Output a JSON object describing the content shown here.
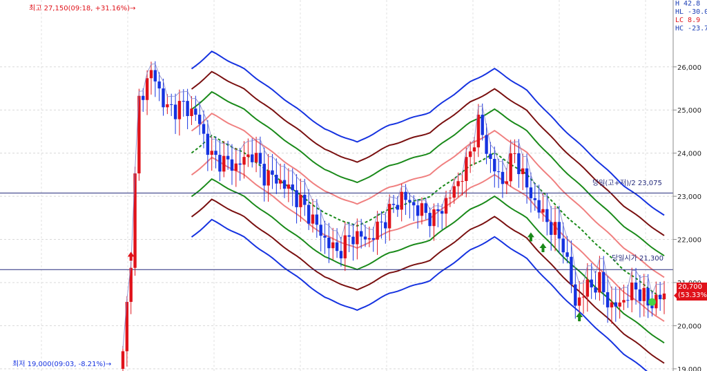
{
  "chart_data": {
    "type": "candlestick",
    "title": "",
    "ylim": [
      18950,
      27550
    ],
    "ytick_labels": [
      "19,000",
      "20,000",
      "21,000",
      "22,000",
      "23,000",
      "24,000",
      "25,000",
      "26,000"
    ],
    "ytick_values": [
      19000,
      20000,
      21000,
      22000,
      23000,
      24000,
      25000,
      26000
    ],
    "horizontal_lines": [
      {
        "label": "당일(고+저)/2 23,075",
        "value": 23075
      },
      {
        "label": "당일시가 21,300",
        "value": 21300
      }
    ],
    "annotations": {
      "high": "최고 27,150(09:18, +31.16%)→",
      "low": "최저 19,000(09:03, -8.21%)→"
    },
    "legend": {
      "lines": [
        "H  42.8",
        "HL -30.0",
        "LC  8.9",
        "HC -23.7"
      ]
    },
    "current_price": {
      "label": "20,700",
      "pct": "(53.33%)",
      "value": 20700
    },
    "candle_count": 135,
    "key_prices": [
      {
        "i": 0,
        "v": 19300
      },
      {
        "i": 2,
        "v": 21600
      },
      {
        "i": 4,
        "v": 25200
      },
      {
        "i": 7,
        "v": 25900
      },
      {
        "i": 11,
        "v": 25000
      },
      {
        "i": 15,
        "v": 25100
      },
      {
        "i": 18,
        "v": 24900
      },
      {
        "i": 22,
        "v": 23900
      },
      {
        "i": 28,
        "v": 23700
      },
      {
        "i": 32,
        "v": 24000
      },
      {
        "i": 35,
        "v": 23500
      },
      {
        "i": 38,
        "v": 23400
      },
      {
        "i": 42,
        "v": 23100
      },
      {
        "i": 46,
        "v": 22600
      },
      {
        "i": 50,
        "v": 22000
      },
      {
        "i": 53,
        "v": 21700
      },
      {
        "i": 57,
        "v": 22100
      },
      {
        "i": 61,
        "v": 22000
      },
      {
        "i": 65,
        "v": 22500
      },
      {
        "i": 69,
        "v": 23000
      },
      {
        "i": 73,
        "v": 22700
      },
      {
        "i": 77,
        "v": 22500
      },
      {
        "i": 81,
        "v": 23000
      },
      {
        "i": 85,
        "v": 23700
      },
      {
        "i": 88,
        "v": 24700
      },
      {
        "i": 91,
        "v": 23800
      },
      {
        "i": 94,
        "v": 23300
      },
      {
        "i": 97,
        "v": 24000
      },
      {
        "i": 100,
        "v": 23200
      },
      {
        "i": 103,
        "v": 22700
      },
      {
        "i": 106,
        "v": 22300
      },
      {
        "i": 109,
        "v": 21900
      },
      {
        "i": 112,
        "v": 20500
      },
      {
        "i": 115,
        "v": 20900
      },
      {
        "i": 118,
        "v": 21000
      },
      {
        "i": 121,
        "v": 20400
      },
      {
        "i": 124,
        "v": 20600
      },
      {
        "i": 127,
        "v": 20900
      },
      {
        "i": 130,
        "v": 20500
      },
      {
        "i": 134,
        "v": 20700
      }
    ],
    "bands": {
      "start_index": 17,
      "centre": [
        {
          "i": 17,
          "v": 24000
        },
        {
          "i": 22,
          "v": 24400
        },
        {
          "i": 30,
          "v": 24000
        },
        {
          "i": 40,
          "v": 23300
        },
        {
          "i": 50,
          "v": 22600
        },
        {
          "i": 58,
          "v": 22300
        },
        {
          "i": 66,
          "v": 22700
        },
        {
          "i": 76,
          "v": 23000
        },
        {
          "i": 86,
          "v": 23700
        },
        {
          "i": 92,
          "v": 24000
        },
        {
          "i": 100,
          "v": 23500
        },
        {
          "i": 108,
          "v": 22700
        },
        {
          "i": 116,
          "v": 22000
        },
        {
          "i": 124,
          "v": 21300
        },
        {
          "i": 134,
          "v": 20600
        }
      ],
      "offsets": [
        {
          "offset": 1950,
          "color": "#1633e0"
        },
        {
          "offset": 1480,
          "color": "#7a1010"
        },
        {
          "offset": 1010,
          "color": "#1a8a1a"
        },
        {
          "offset": 510,
          "color": "#f08080"
        },
        {
          "offset": 0,
          "color": "#1a8a1a",
          "dashed": true
        },
        {
          "offset": -510,
          "color": "#f08080"
        },
        {
          "offset": -1010,
          "color": "#1a8a1a"
        },
        {
          "offset": -1480,
          "color": "#7a1010"
        },
        {
          "offset": -1950,
          "color": "#1633e0"
        }
      ]
    },
    "arrows": [
      {
        "i": 2,
        "v": 21600,
        "color": "#e0121a",
        "dir": "up"
      },
      {
        "i": 101,
        "v": 22050,
        "color": "#1a8a1a",
        "dir": "up"
      },
      {
        "i": 104,
        "v": 21800,
        "color": "#1a8a1a",
        "dir": "up"
      },
      {
        "i": 113,
        "v": 20200,
        "color": "#1a8a1a",
        "dir": "up"
      }
    ],
    "marker": {
      "i": 131,
      "v": 20550,
      "color": "#44d444"
    },
    "colors": {
      "up": "#e0121a",
      "down": "#1633e0",
      "ref": "#23297a",
      "tick_line": "#888888"
    }
  }
}
